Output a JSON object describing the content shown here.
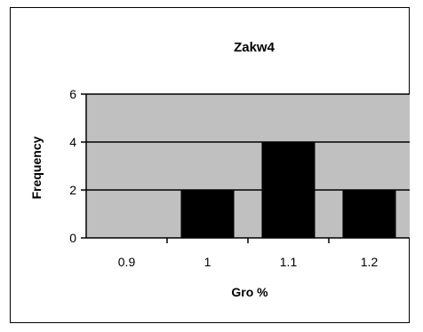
{
  "chart_data": {
    "type": "bar",
    "title": "Zakw4",
    "xlabel": "Gro %",
    "ylabel": "Frequency",
    "categories": [
      "0.9",
      "1",
      "1.1",
      "1.2"
    ],
    "values": [
      0,
      2,
      4,
      2
    ],
    "ylim": [
      0,
      6
    ],
    "yticks": [
      "0",
      "2",
      "4",
      "6"
    ],
    "grid": true,
    "legend": "none",
    "colors": {
      "bar": "#000000",
      "plot_background": "#c0c0c0",
      "gridline": "#000000"
    }
  }
}
